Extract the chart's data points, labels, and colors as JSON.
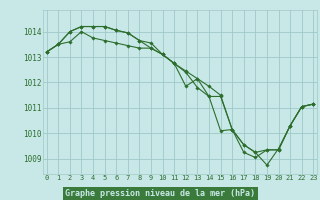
{
  "background_color": "#c8e8e8",
  "plot_bg_color": "#c8e8e8",
  "grid_color": "#a0c8c8",
  "line_color": "#2d6e2d",
  "marker_color": "#2d6e2d",
  "xlabel": "Graphe pression niveau de la mer (hPa)",
  "xlabel_bg": "#3a7a3a",
  "xlabel_fg": "#c8e8e8",
  "ylim": [
    1008.4,
    1014.85
  ],
  "xlim": [
    -0.3,
    23.3
  ],
  "yticks": [
    1009,
    1010,
    1011,
    1012,
    1013,
    1014
  ],
  "xticks": [
    0,
    1,
    2,
    3,
    4,
    5,
    6,
    7,
    8,
    9,
    10,
    11,
    12,
    13,
    14,
    15,
    16,
    17,
    18,
    19,
    20,
    21,
    22,
    23
  ],
  "series": [
    [
      1013.2,
      1013.5,
      1013.6,
      1014.0,
      1013.75,
      1013.65,
      1013.55,
      1013.45,
      1013.35,
      1013.35,
      1013.1,
      1012.75,
      1012.45,
      1012.15,
      1011.85,
      1011.5,
      1010.15,
      1009.55,
      1009.25,
      1008.75,
      1009.4,
      1010.3,
      1011.05,
      1011.15
    ],
    [
      1013.2,
      1013.5,
      1014.0,
      1014.2,
      1014.2,
      1014.2,
      1014.05,
      1013.95,
      1013.65,
      1013.55,
      1013.1,
      1012.75,
      1012.4,
      1011.8,
      1011.45,
      1011.45,
      1010.15,
      1009.55,
      1009.25,
      1009.35,
      1009.35,
      1010.3,
      1011.05,
      1011.15
    ],
    [
      1013.2,
      1013.5,
      1014.0,
      1014.2,
      1014.2,
      1014.2,
      1014.05,
      1013.95,
      1013.65,
      1013.35,
      1013.1,
      1012.75,
      1011.85,
      1012.15,
      1011.45,
      1010.1,
      1010.15,
      1009.25,
      1009.05,
      1009.35,
      1009.35,
      1010.3,
      1011.05,
      1011.15
    ]
  ]
}
